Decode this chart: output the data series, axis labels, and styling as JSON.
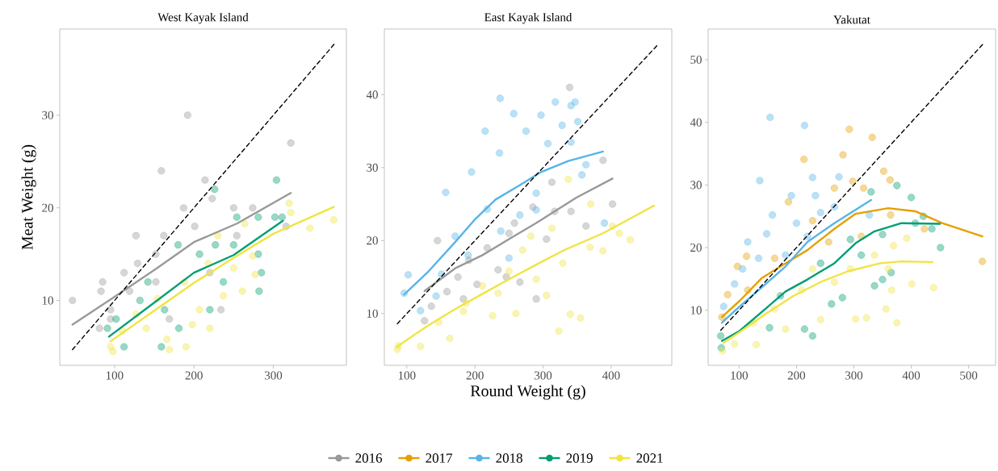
{
  "chart_data": [
    {
      "type": "scatter",
      "title": "West Kayak Island",
      "ylabel": "Meat Weight (g)",
      "legend": "bottom",
      "xlim": [
        31,
        392
      ],
      "ylim": [
        3.0,
        39.3
      ],
      "xticks": [
        100,
        200,
        300
      ],
      "yticks": [
        10,
        20,
        30
      ],
      "series": [
        {
          "name": "2016",
          "marker": "circle",
          "color": "#999999",
          "x": [
            47,
            192,
            322,
            159,
            214,
            85,
            83,
            81,
            127,
            187,
            250,
            274,
            223,
            201,
            162,
            152,
            129,
            112,
            119,
            95,
            234,
            169,
            220,
            254,
            152,
            95,
            316
          ],
          "values": [
            10,
            30,
            27,
            24,
            23,
            12,
            11,
            7,
            17,
            20,
            20,
            20,
            21,
            18,
            17,
            15,
            14,
            13,
            11,
            8,
            9,
            8,
            13,
            17,
            12,
            9,
            18
          ]
        },
        {
          "name": "2019",
          "marker": "circle",
          "color": "#009E73",
          "x": [
            304,
            226,
            254,
            281,
            302,
            311,
            285,
            282,
            227,
            207,
            159,
            181,
            102,
            91,
            112,
            180,
            237,
            220,
            142,
            132,
            281,
            250,
            163
          ],
          "values": [
            23,
            22,
            19,
            19,
            19,
            19,
            13,
            11,
            16,
            15,
            5,
            7,
            8,
            7,
            5,
            16,
            12,
            9,
            12,
            10,
            15,
            16,
            9
          ]
        },
        {
          "name": "2021",
          "marker": "circle",
          "color": "#F0E442",
          "x": [
            376,
            346,
            320,
            322,
            277,
            220,
            190,
            169,
            98,
            95,
            166,
            198,
            261,
            250,
            230,
            218,
            188,
            154,
            127,
            110,
            264,
            237,
            207,
            140,
            274
          ],
          "values": [
            18.7,
            17.8,
            20.5,
            19.5,
            12.8,
            7,
            5,
            4.7,
            4.5,
            5,
            5.8,
            7.4,
            11,
            13.5,
            17,
            14,
            12,
            10.2,
            8.5,
            6.7,
            18.3,
            10.5,
            9,
            7,
            14.8
          ]
        },
        {
          "type": "line",
          "color": "#999999",
          "x": [
            47,
            100,
            152,
            200,
            254,
            322
          ],
          "values": [
            7.4,
            10.4,
            13.4,
            16.3,
            18.3,
            21.6
          ]
        },
        {
          "type": "line",
          "color": "#009E73",
          "x": [
            93,
            152,
            200,
            250,
            312
          ],
          "values": [
            6.1,
            9.9,
            13.0,
            14.9,
            18.6
          ]
        },
        {
          "type": "line",
          "color": "#F0E442",
          "x": [
            95,
            150,
            200,
            250,
            300,
            376
          ],
          "values": [
            5.6,
            8.9,
            11.9,
            14.6,
            17.2,
            20.1
          ]
        },
        {
          "type": "line",
          "color": "#000000",
          "line_style": "dashed",
          "x": [
            47,
            377
          ],
          "values": [
            4.7,
            37.7
          ]
        }
      ]
    },
    {
      "type": "scatter",
      "title": "East Kayak Island",
      "xlabel": "Round Weight (g)",
      "xlim": [
        67,
        489
      ],
      "ylim": [
        2.9,
        49.0
      ],
      "xticks": [
        100,
        200,
        300,
        400
      ],
      "yticks": [
        10,
        20,
        30,
        40
      ],
      "series": [
        {
          "name": "2016",
          "marker": "circle",
          "color": "#999999",
          "x": [
            339,
            388,
            402,
            363,
            341,
            313,
            290,
            145,
            126,
            136,
            159,
            183,
            203,
            234,
            266,
            218,
            191,
            250,
            285,
            317,
            175,
            246,
            258,
            305
          ],
          "values": [
            41,
            31,
            25,
            22,
            24,
            28,
            12,
            20,
            9,
            11,
            13,
            12,
            14,
            16,
            14.3,
            19,
            17.3,
            21,
            24.6,
            24,
            15,
            15,
            22.4,
            20.2
          ]
        },
        {
          "name": "2018",
          "marker": "circle",
          "color": "#56B4E9",
          "x": [
            237,
            297,
            318,
            341,
            347,
            351,
            328,
            215,
            257,
            275,
            307,
            341,
            236,
            195,
            157,
            102,
            96,
            120,
            143,
            390,
            363,
            357,
            290,
            218,
            171,
            190,
            250,
            151,
            266,
            238,
            290
          ],
          "values": [
            39.5,
            37.2,
            39,
            38.5,
            39,
            36.3,
            35.8,
            35,
            37.4,
            35,
            33.3,
            33.5,
            32,
            29.4,
            26.6,
            15.3,
            12.8,
            10.4,
            12.4,
            22.4,
            30.4,
            29,
            26.5,
            24.3,
            20.6,
            18,
            17.6,
            15.4,
            23.5,
            21.3,
            24.2
          ]
        },
        {
          "name": "2021",
          "marker": "circle",
          "color": "#F0E442",
          "x": [
            86,
            88,
            120,
            163,
            428,
            412,
            402,
            370,
            355,
            323,
            340,
            260,
            226,
            337,
            187,
            211,
            250,
            290,
            329,
            369,
            313,
            270,
            234,
            147,
            183,
            282,
            305,
            388
          ],
          "values": [
            5.1,
            5.6,
            5.5,
            6.6,
            20.1,
            21,
            22,
            25,
            9.4,
            7.6,
            9.9,
            10,
            9.7,
            28.4,
            11.4,
            13.8,
            15.8,
            14.7,
            16.9,
            19.1,
            21.7,
            18.7,
            12.8,
            8.8,
            10.3,
            20.6,
            12.5,
            18.6
          ]
        },
        {
          "type": "line",
          "color": "#999999",
          "x": [
            126,
            171,
            211,
            250,
            290,
            349,
            402
          ],
          "values": [
            13.1,
            16.2,
            18.0,
            20.2,
            22.4,
            25.9,
            28.5
          ]
        },
        {
          "type": "line",
          "color": "#56B4E9",
          "x": [
            96,
            132,
            171,
            199,
            230,
            266,
            297,
            337,
            388
          ],
          "values": [
            12.6,
            15.8,
            19.8,
            22.8,
            25.6,
            27.6,
            29.4,
            30.9,
            32.2
          ]
        },
        {
          "type": "line",
          "color": "#F0E442",
          "x": [
            86,
            132,
            171,
            211,
            250,
            290,
            329,
            388,
            463
          ],
          "values": [
            5.5,
            8.4,
            10.6,
            12.7,
            14.7,
            16.7,
            18.6,
            21.0,
            24.8
          ]
        },
        {
          "type": "line",
          "color": "#000000",
          "line_style": "dashed",
          "x": [
            86,
            470
          ],
          "values": [
            8.6,
            47.0
          ]
        }
      ]
    },
    {
      "type": "scatter",
      "title": "Yakutat",
      "xlim": [
        46,
        547
      ],
      "ylim": [
        1.2,
        54.9
      ],
      "xticks": [
        100,
        200,
        300,
        400,
        500
      ],
      "yticks": [
        10,
        20,
        30,
        40,
        50
      ],
      "series": [
        {
          "name": "2017",
          "marker": "circle",
          "color": "#E69F00",
          "x": [
            292,
            332,
            281,
            213,
            352,
            363,
            524,
            423,
            298,
            266,
            70,
            80,
            97,
            113,
            162,
            186,
            228,
            317,
            256,
            313,
            364,
            115
          ],
          "values": [
            38.9,
            37.6,
            34.8,
            34.1,
            32.2,
            30.8,
            17.8,
            23,
            30.6,
            29.5,
            8.9,
            12.5,
            17,
            18.6,
            18.3,
            27.3,
            24.3,
            29.5,
            20.9,
            21.8,
            25.2,
            13.2
          ]
        },
        {
          "name": "2018",
          "marker": "circle",
          "color": "#56B4E9",
          "x": [
            154,
            214,
            136,
            228,
            274,
            191,
            233,
            158,
            92,
            115,
            148,
            200,
            242,
            181,
            134,
            219,
            327,
            266,
            106,
            73
          ],
          "values": [
            40.8,
            39.5,
            30.7,
            31.2,
            31.3,
            28.3,
            28.3,
            25.2,
            14.2,
            20.9,
            22.2,
            23.9,
            25.6,
            18.8,
            18.3,
            21.8,
            25.2,
            26.5,
            16.6,
            10.6
          ]
        },
        {
          "name": "2019",
          "marker": "circle",
          "color": "#009E73",
          "x": [
            375,
            400,
            330,
            451,
            436,
            421,
            350,
            336,
            365,
            350,
            228,
            214,
            69,
            68,
            280,
            261,
            313,
            294,
            242,
            172,
            407,
            153
          ],
          "values": [
            29.9,
            28,
            28.9,
            20,
            23,
            25,
            14.9,
            13.9,
            16,
            22.1,
            5.9,
            7,
            4,
            5.9,
            12,
            11,
            18.8,
            21.3,
            17.5,
            12.3,
            23.9,
            7.2
          ]
        },
        {
          "name": "2021",
          "marker": "circle",
          "color": "#F0E442",
          "x": [
            375,
            322,
            303,
            356,
            401,
            439,
            366,
            392,
            369,
            242,
            181,
            130,
            71,
            92,
            266,
            294,
            336,
            209,
            162,
            125,
            228,
            360
          ],
          "values": [
            8,
            8.8,
            8.6,
            10.2,
            14.2,
            13.6,
            13.2,
            21.5,
            20.3,
            8.5,
            7,
            4.5,
            3.5,
            4.6,
            14.5,
            16.6,
            18.8,
            13.2,
            10.2,
            8,
            16.6,
            16.6
          ]
        },
        {
          "type": "line",
          "color": "#E69F00",
          "x": [
            70,
            101,
            139,
            181,
            219,
            266,
            303,
            360,
            407,
            454,
            524
          ],
          "values": [
            8.9,
            11.5,
            15.1,
            17.5,
            19.6,
            23.0,
            25.4,
            26.3,
            25.8,
            23.9,
            21.8
          ]
        },
        {
          "type": "line",
          "color": "#56B4E9",
          "x": [
            70,
            101,
            139,
            181,
            219,
            266,
            330
          ],
          "values": [
            8.0,
            10.6,
            13.6,
            17.0,
            20.9,
            23.9,
            27.6
          ]
        },
        {
          "type": "line",
          "color": "#009E73",
          "x": [
            70,
            101,
            148,
            181,
            219,
            266,
            303,
            336,
            383,
            450
          ],
          "values": [
            5.1,
            6.7,
            10.4,
            13.0,
            14.9,
            17.5,
            20.7,
            22.6,
            23.9,
            23.8
          ]
        },
        {
          "type": "line",
          "color": "#F0E442",
          "x": [
            73,
            101,
            148,
            195,
            242,
            289,
            346,
            383,
            437
          ],
          "values": [
            4.8,
            6.5,
            9.5,
            12.3,
            14.5,
            16.2,
            17.5,
            17.8,
            17.7
          ]
        },
        {
          "type": "line",
          "color": "#000000",
          "line_style": "dashed",
          "x": [
            68,
            525
          ],
          "values": [
            6.8,
            52.5
          ]
        }
      ]
    }
  ]
}
